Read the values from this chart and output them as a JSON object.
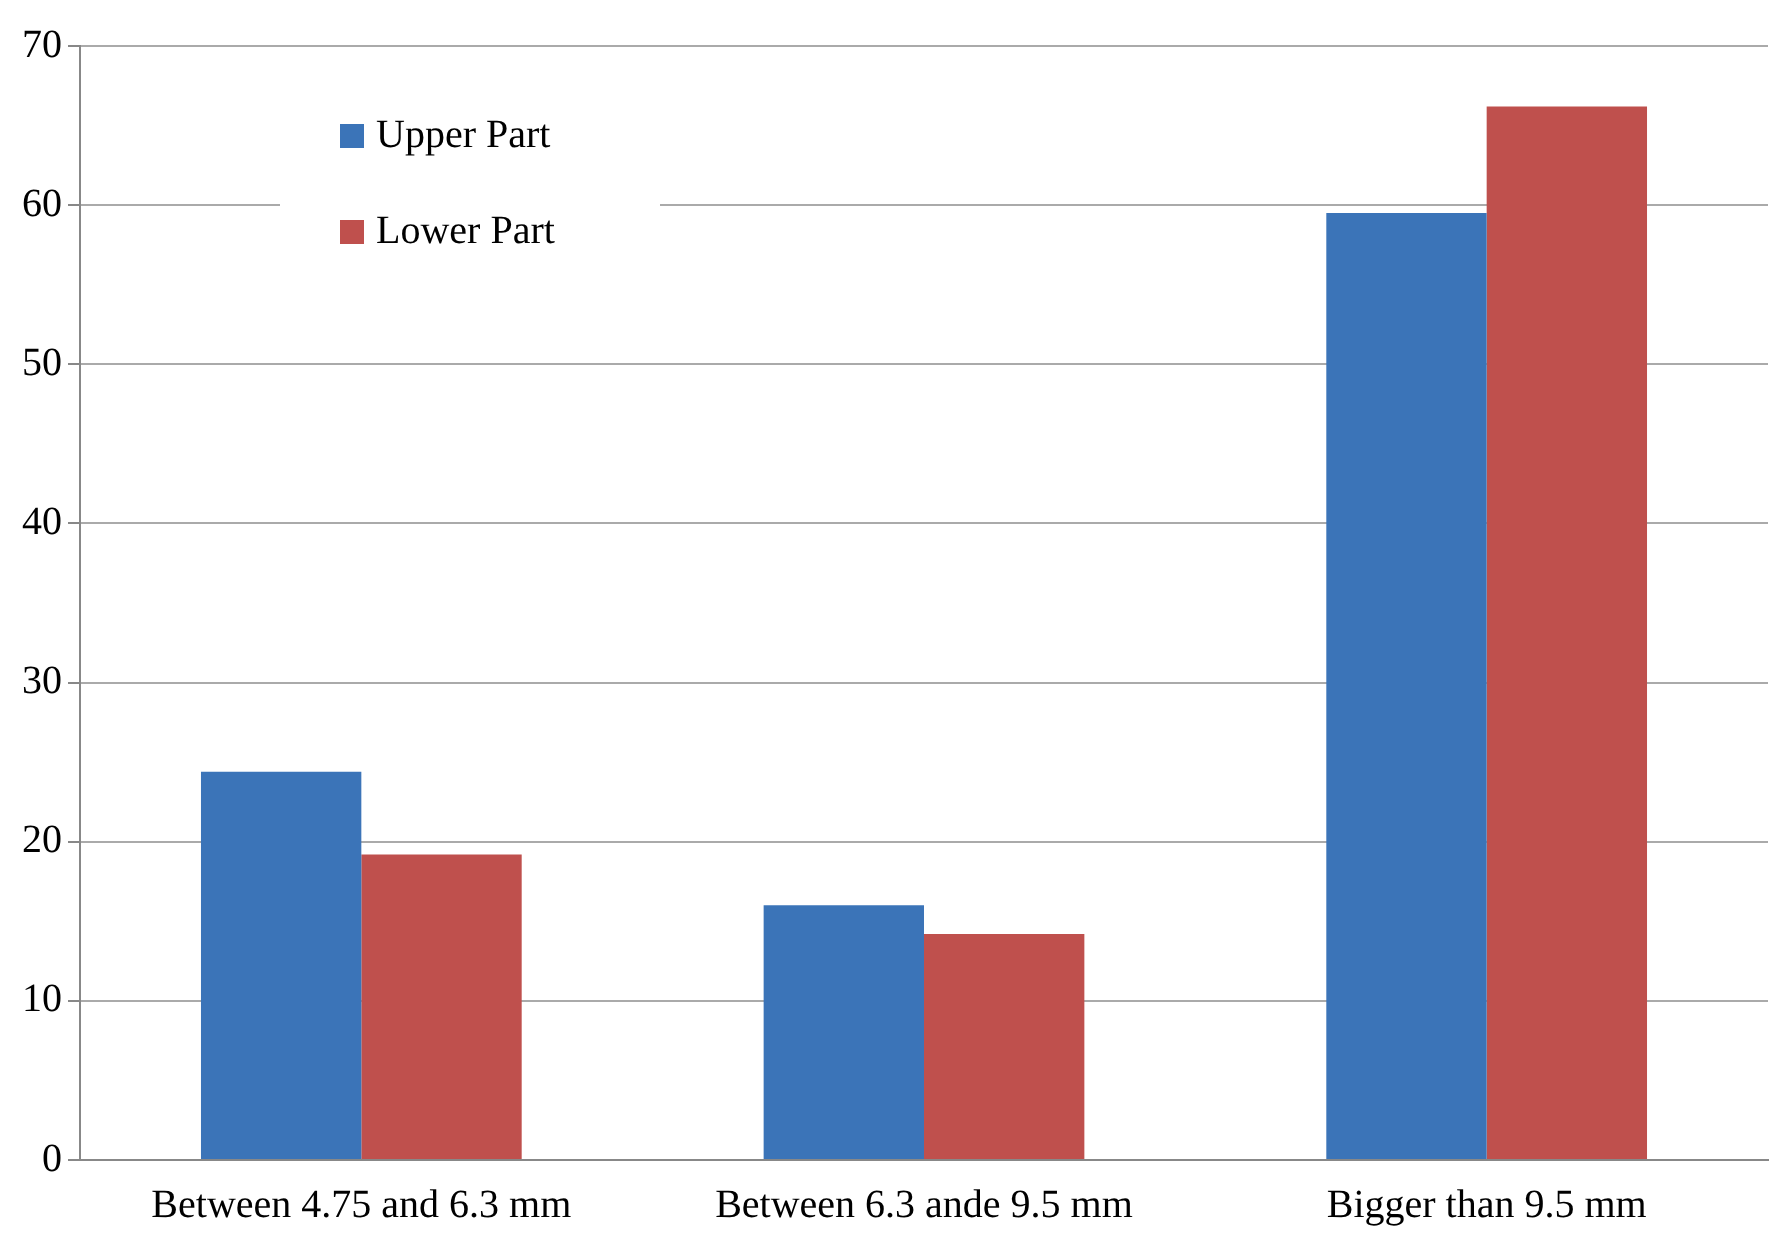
{
  "chart_data": {
    "type": "bar",
    "categories": [
      "Between 4.75 and 6.3 mm",
      "Between 6.3 ande 9.5 mm",
      "Bigger than 9.5 mm"
    ],
    "series": [
      {
        "name": "Upper Part",
        "color": "#3b74b8",
        "values": [
          24.4,
          16.0,
          59.5
        ]
      },
      {
        "name": "Lower Part",
        "color": "#bf504d",
        "values": [
          19.2,
          14.2,
          66.2
        ]
      }
    ],
    "ylim": [
      0,
      70
    ],
    "yticks": [
      0,
      10,
      20,
      30,
      40,
      50,
      60,
      70
    ],
    "grid": "y",
    "legend": "top left"
  }
}
